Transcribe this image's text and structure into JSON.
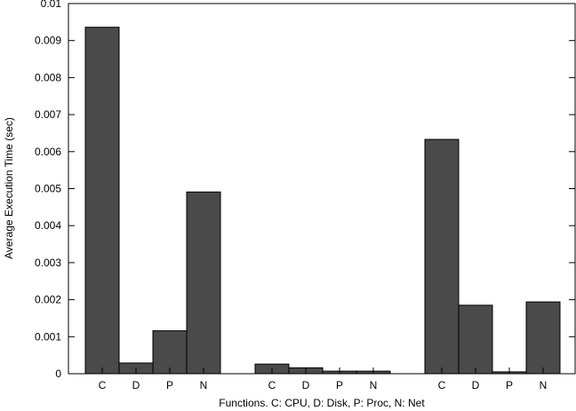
{
  "chart_data": {
    "type": "bar",
    "xlabel": "Functions. C: CPU, D: Disk, P: Proc, N: Net",
    "ylabel": "Average Execution Time (sec)",
    "ylim": [
      0,
      0.01
    ],
    "yticks": [
      "0",
      "0.001",
      "0.002",
      "0.003",
      "0.004",
      "0.005",
      "0.006",
      "0.007",
      "0.008",
      "0.009",
      "0.01"
    ],
    "grid": false,
    "legend": "none",
    "bar_color": "#4a4a4a",
    "groups": [
      {
        "categories": [
          "C",
          "D",
          "P",
          "N"
        ],
        "values": [
          0.00936,
          0.00029,
          0.00116,
          0.00491
        ]
      },
      {
        "categories": [
          "C",
          "D",
          "P",
          "N"
        ],
        "values": [
          0.00026,
          0.00016,
          7e-05,
          7e-05
        ]
      },
      {
        "categories": [
          "C",
          "D",
          "P",
          "N"
        ],
        "values": [
          0.00633,
          0.00185,
          5e-05,
          0.00194
        ]
      }
    ]
  }
}
